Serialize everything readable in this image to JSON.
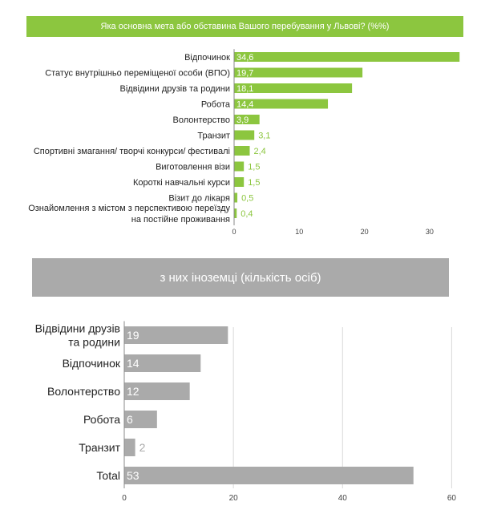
{
  "title1": "Яка основна мета або обставина Вашого перебування у Львові?  (%%)",
  "title2": "з них іноземці (кількість осіб)",
  "colors": {
    "green": "#8cc63f",
    "gray": "#aaaaaa"
  },
  "chart_data": [
    {
      "type": "bar",
      "orientation": "horizontal",
      "title": "Яка основна мета або обставина Вашого перебування у Львові?  (%%)",
      "categories": [
        "Відпочинок",
        "Статус внутрішньо переміщеної особи (ВПО)",
        "Відвідини друзів та родини",
        "Робота",
        "Волонтерство",
        "Транзит",
        "Спортивні змагання/ творчі конкурси/ фестивалі",
        "Виготовлення візи",
        "Короткі навчальні курси",
        "Візит до лікаря",
        "Ознайомлення з містом з перспективою переїзду на постійне проживання"
      ],
      "values": [
        34.6,
        19.7,
        18.1,
        14.4,
        3.9,
        3.1,
        2.4,
        1.5,
        1.5,
        0.5,
        0.4
      ],
      "value_labels": [
        "34,6",
        "19,7",
        "18,1",
        "14,4",
        "3,9",
        "3,1",
        "2,4",
        "1,5",
        "1,5",
        "0,5",
        "0,4"
      ],
      "xticks": [
        0,
        10,
        20,
        30
      ],
      "xlim": [
        0,
        35
      ],
      "grid": false,
      "color": "#8cc63f"
    },
    {
      "type": "bar",
      "orientation": "horizontal",
      "title": "з них іноземці (кількість осіб)",
      "categories": [
        "Відвідини друзів та родини",
        "Відпочинок",
        "Волонтерство",
        "Робота",
        "Транзит",
        "Total"
      ],
      "values": [
        19,
        14,
        12,
        6,
        2,
        53
      ],
      "value_labels": [
        "19",
        "14",
        "12",
        "6",
        "2",
        "53"
      ],
      "xticks": [
        0,
        20,
        40,
        60
      ],
      "xlim": [
        0,
        62
      ],
      "grid": true,
      "color": "#aaaaaa"
    }
  ]
}
